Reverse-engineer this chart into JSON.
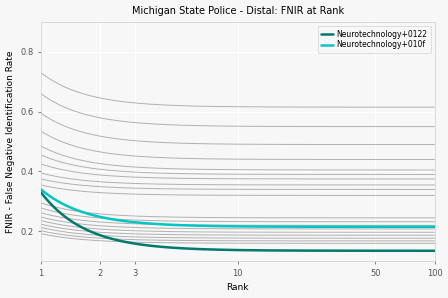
{
  "title": "Michigan State Police - Distal: FNIR at Rank",
  "xlabel": "Rank",
  "ylabel": "FNIR - False Negative Identification Rate",
  "xlim_min": 1,
  "xlim_max": 100,
  "ylim_min": 0.1,
  "ylim_max": 0.9,
  "x_ticks": [
    1,
    2,
    3,
    10,
    50,
    100
  ],
  "x_tick_labels": [
    "1",
    "2",
    "3",
    "10",
    "50",
    "100"
  ],
  "y_ticks": [
    0.2,
    0.4,
    0.6,
    0.8
  ],
  "background_color": "#f7f7f7",
  "grid_color": "#ffffff",
  "legend_entries": [
    "Neurotechnology+0122",
    "Neurotechnology+010f"
  ],
  "highlight_line1_color": "#007a6e",
  "highlight_line1_lw": 1.8,
  "highlight_line1_start": 0.33,
  "highlight_line1_end": 0.135,
  "highlight_line2_color": "#00c5c5",
  "highlight_line2_lw": 1.8,
  "highlight_line2_start": 0.34,
  "highlight_line2_end": 0.215,
  "gray_color": "#b0b0b0",
  "gray_lw": 0.7,
  "gray_lines": [
    {
      "start": 0.73,
      "end": 0.615
    },
    {
      "start": 0.66,
      "end": 0.55
    },
    {
      "start": 0.595,
      "end": 0.49
    },
    {
      "start": 0.535,
      "end": 0.44
    },
    {
      "start": 0.485,
      "end": 0.405
    },
    {
      "start": 0.455,
      "end": 0.39
    },
    {
      "start": 0.425,
      "end": 0.375
    },
    {
      "start": 0.395,
      "end": 0.355
    },
    {
      "start": 0.375,
      "end": 0.34
    },
    {
      "start": 0.355,
      "end": 0.32
    },
    {
      "start": 0.295,
      "end": 0.245
    },
    {
      "start": 0.278,
      "end": 0.232
    },
    {
      "start": 0.262,
      "end": 0.22
    },
    {
      "start": 0.248,
      "end": 0.208
    },
    {
      "start": 0.236,
      "end": 0.197
    },
    {
      "start": 0.224,
      "end": 0.187
    },
    {
      "start": 0.213,
      "end": 0.177
    },
    {
      "start": 0.202,
      "end": 0.168
    },
    {
      "start": 0.192,
      "end": 0.16
    }
  ],
  "title_fontsize": 7,
  "axis_label_fontsize": 6.5,
  "tick_fontsize": 6,
  "legend_fontsize": 5.5
}
